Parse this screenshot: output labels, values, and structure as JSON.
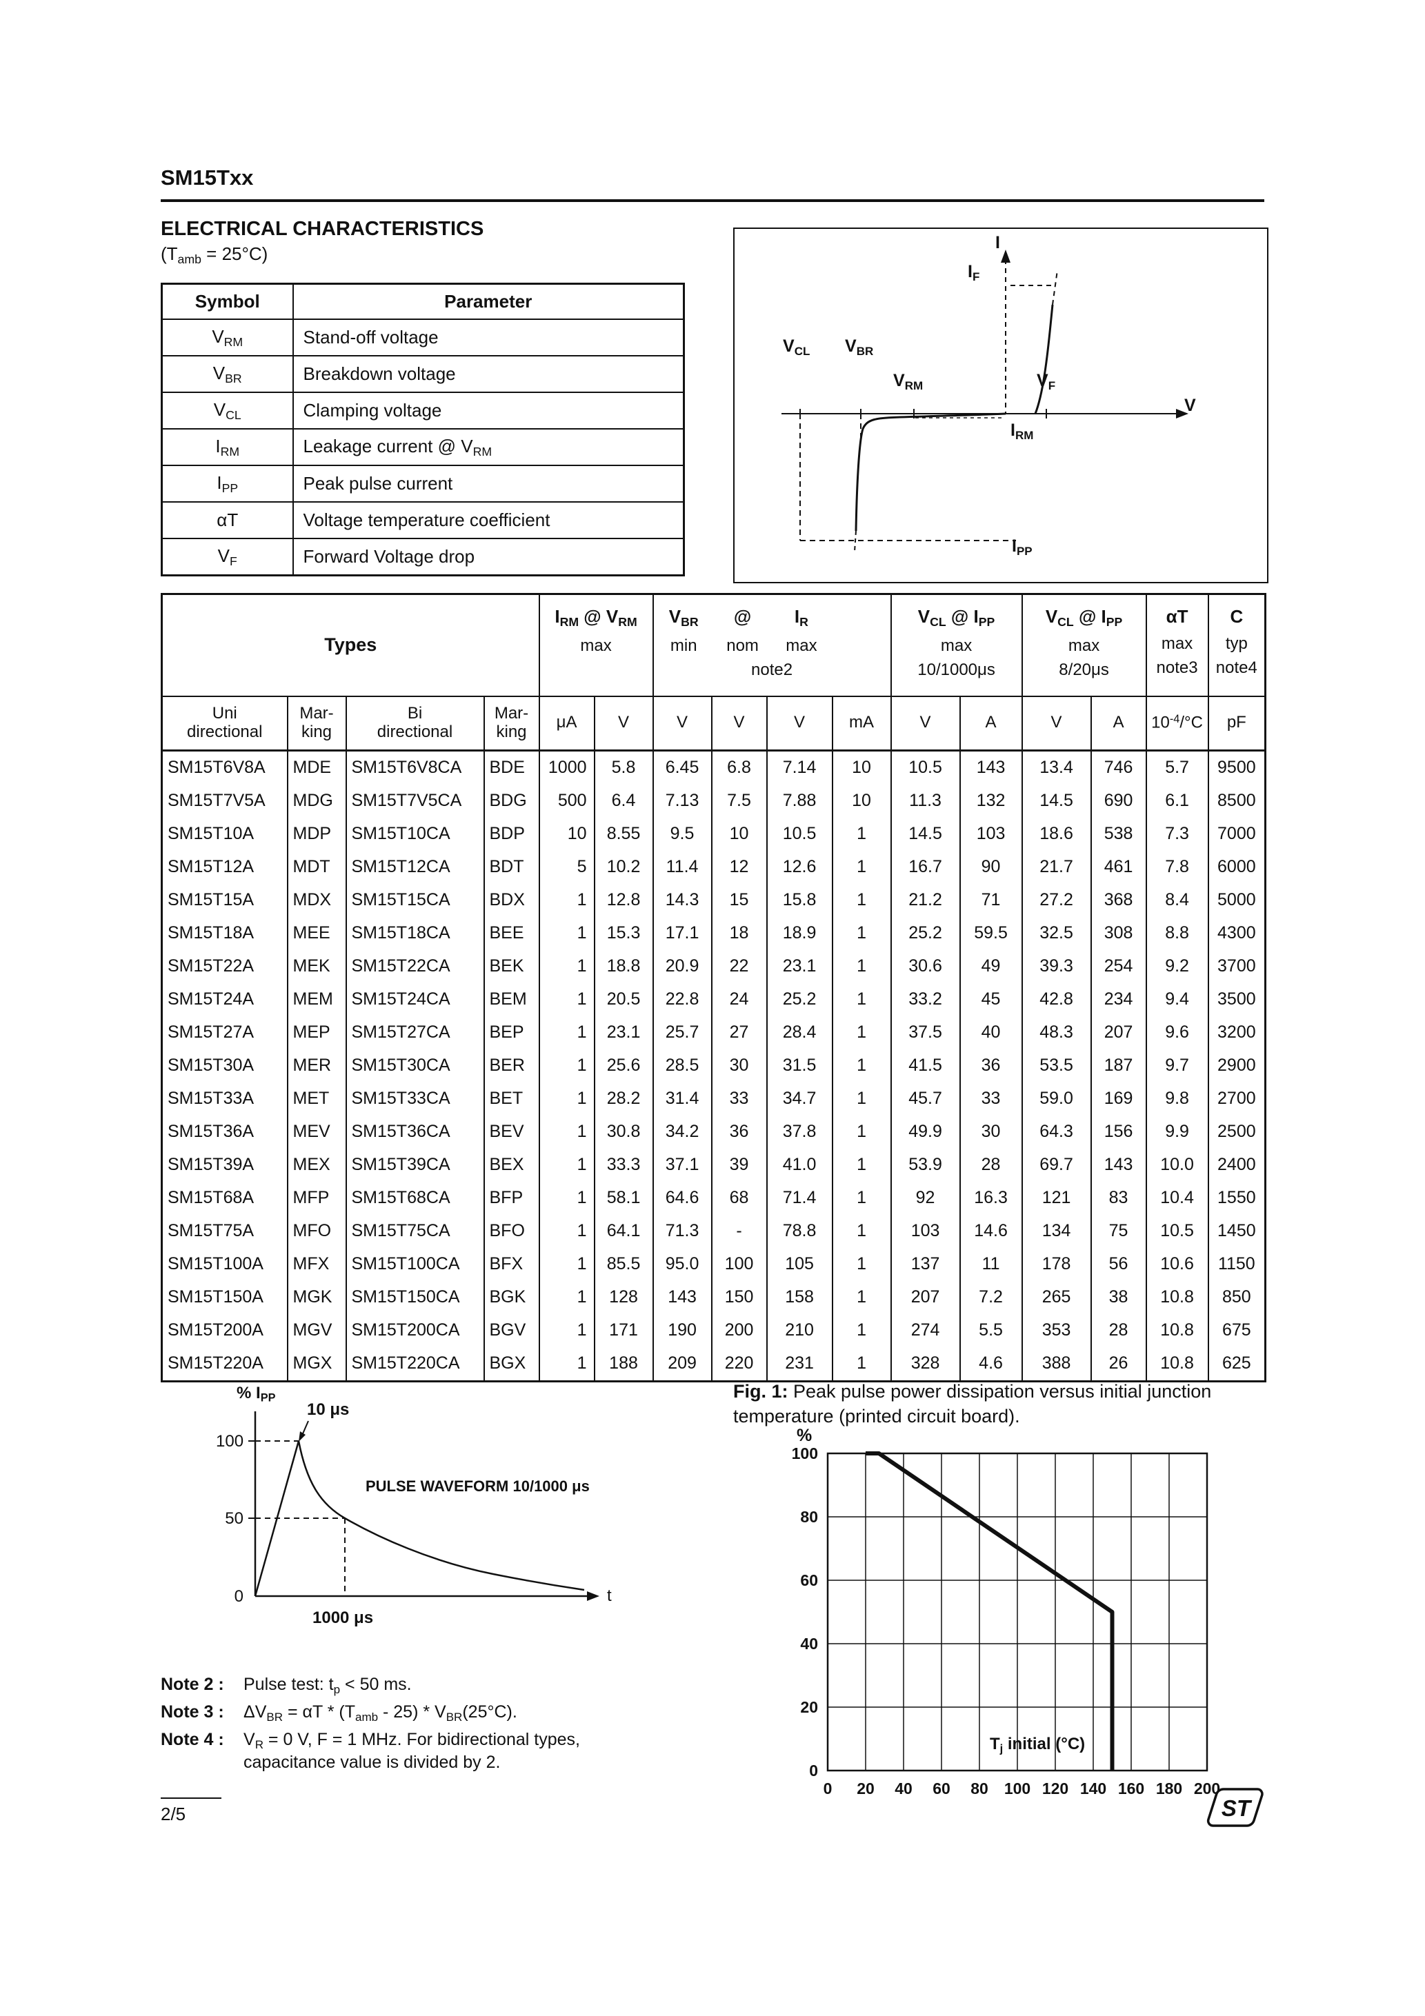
{
  "page": {
    "part_number": "SM15Txx",
    "page_number": "2/5",
    "logo_text": "ST"
  },
  "electrical": {
    "title": "ELECTRICAL CHARACTERISTICS",
    "subtitle": "(T_{amb} = 25°C)",
    "symbol_table": {
      "headers": [
        "Symbol",
        "Parameter"
      ],
      "rows": [
        {
          "symbol": "V_{RM}",
          "parameter": "Stand-off voltage"
        },
        {
          "symbol": "V_{BR}",
          "parameter": "Breakdown voltage"
        },
        {
          "symbol": "V_{CL}",
          "parameter": "Clamping voltage"
        },
        {
          "symbol": "I_{RM}",
          "parameter": "Leakage current @ V_{RM}"
        },
        {
          "symbol": "I_{PP}",
          "parameter": "Peak pulse current"
        },
        {
          "symbol": "αT",
          "parameter": "Voltage temperature coefficient"
        },
        {
          "symbol": "V_{F}",
          "parameter": "Forward Voltage drop"
        }
      ]
    }
  },
  "iv_diagram": {
    "labels": {
      "i": "I",
      "i_f": "I_{F}",
      "v_cl": "V_{CL}",
      "v_br": "V_{BR}",
      "v_rm": "V_{RM}",
      "v_f": "V_{F}",
      "v": "V",
      "i_rm": "I_{RM}",
      "i_pp": "I_{PP}"
    }
  },
  "main_table": {
    "header": {
      "types": "Types",
      "irm": {
        "title": "I_{RM} @ V_{RM}",
        "l2": "max"
      },
      "vbr": {
        "p1": "V_{BR}",
        "p2": "@",
        "p3": "I_{R}",
        "m1": "min",
        "m2": "nom",
        "m3": "max",
        "l3": "note2"
      },
      "vcl10": {
        "title": "V_{CL} @ I_{PP}",
        "l2": "max",
        "l3": "10/1000μs"
      },
      "vcl8": {
        "title": "V_{CL} @ I_{PP}",
        "l2": "max",
        "l3": "8/20μs"
      },
      "alphat": {
        "title": "αT",
        "l2": "max",
        "l3": "note3"
      },
      "cap": {
        "title": "C",
        "l2": "typ",
        "l3": "note4"
      }
    },
    "units": [
      "Uni\ndirectional",
      "Mar-\nking",
      "Bi\ndirectional",
      "Mar-\nking",
      "μA",
      "V",
      "V",
      "V",
      "V",
      "mA",
      "V",
      "A",
      "V",
      "A",
      "10^{-4}/°C",
      "pF"
    ],
    "rows": [
      [
        "SM15T6V8A",
        "MDE",
        "SM15T6V8CA",
        "BDE",
        "1000",
        "5.8",
        "6.45",
        "6.8",
        "7.14",
        "10",
        "10.5",
        "143",
        "13.4",
        "746",
        "5.7",
        "9500"
      ],
      [
        "SM15T7V5A",
        "MDG",
        "SM15T7V5CA",
        "BDG",
        "500",
        "6.4",
        "7.13",
        "7.5",
        "7.88",
        "10",
        "11.3",
        "132",
        "14.5",
        "690",
        "6.1",
        "8500"
      ],
      [
        "SM15T10A",
        "MDP",
        "SM15T10CA",
        "BDP",
        "10",
        "8.55",
        "9.5",
        "10",
        "10.5",
        "1",
        "14.5",
        "103",
        "18.6",
        "538",
        "7.3",
        "7000"
      ],
      [
        "SM15T12A",
        "MDT",
        "SM15T12CA",
        "BDT",
        "5",
        "10.2",
        "11.4",
        "12",
        "12.6",
        "1",
        "16.7",
        "90",
        "21.7",
        "461",
        "7.8",
        "6000"
      ],
      [
        "SM15T15A",
        "MDX",
        "SM15T15CA",
        "BDX",
        "1",
        "12.8",
        "14.3",
        "15",
        "15.8",
        "1",
        "21.2",
        "71",
        "27.2",
        "368",
        "8.4",
        "5000"
      ],
      [
        "SM15T18A",
        "MEE",
        "SM15T18CA",
        "BEE",
        "1",
        "15.3",
        "17.1",
        "18",
        "18.9",
        "1",
        "25.2",
        "59.5",
        "32.5",
        "308",
        "8.8",
        "4300"
      ],
      [
        "SM15T22A",
        "MEK",
        "SM15T22CA",
        "BEK",
        "1",
        "18.8",
        "20.9",
        "22",
        "23.1",
        "1",
        "30.6",
        "49",
        "39.3",
        "254",
        "9.2",
        "3700"
      ],
      [
        "SM15T24A",
        "MEM",
        "SM15T24CA",
        "BEM",
        "1",
        "20.5",
        "22.8",
        "24",
        "25.2",
        "1",
        "33.2",
        "45",
        "42.8",
        "234",
        "9.4",
        "3500"
      ],
      [
        "SM15T27A",
        "MEP",
        "SM15T27CA",
        "BEP",
        "1",
        "23.1",
        "25.7",
        "27",
        "28.4",
        "1",
        "37.5",
        "40",
        "48.3",
        "207",
        "9.6",
        "3200"
      ],
      [
        "SM15T30A",
        "MER",
        "SM15T30CA",
        "BER",
        "1",
        "25.6",
        "28.5",
        "30",
        "31.5",
        "1",
        "41.5",
        "36",
        "53.5",
        "187",
        "9.7",
        "2900"
      ],
      [
        "SM15T33A",
        "MET",
        "SM15T33CA",
        "BET",
        "1",
        "28.2",
        "31.4",
        "33",
        "34.7",
        "1",
        "45.7",
        "33",
        "59.0",
        "169",
        "9.8",
        "2700"
      ],
      [
        "SM15T36A",
        "MEV",
        "SM15T36CA",
        "BEV",
        "1",
        "30.8",
        "34.2",
        "36",
        "37.8",
        "1",
        "49.9",
        "30",
        "64.3",
        "156",
        "9.9",
        "2500"
      ],
      [
        "SM15T39A",
        "MEX",
        "SM15T39CA",
        "BEX",
        "1",
        "33.3",
        "37.1",
        "39",
        "41.0",
        "1",
        "53.9",
        "28",
        "69.7",
        "143",
        "10.0",
        "2400"
      ],
      [
        "SM15T68A",
        "MFP",
        "SM15T68CA",
        "BFP",
        "1",
        "58.1",
        "64.6",
        "68",
        "71.4",
        "1",
        "92",
        "16.3",
        "121",
        "83",
        "10.4",
        "1550"
      ],
      [
        "SM15T75A",
        "MFO",
        "SM15T75CA",
        "BFO",
        "1",
        "64.1",
        "71.3",
        "-",
        "78.8",
        "1",
        "103",
        "14.6",
        "134",
        "75",
        "10.5",
        "1450"
      ],
      [
        "SM15T100A",
        "MFX",
        "SM15T100CA",
        "BFX",
        "1",
        "85.5",
        "95.0",
        "100",
        "105",
        "1",
        "137",
        "11",
        "178",
        "56",
        "10.6",
        "1150"
      ],
      [
        "SM15T150A",
        "MGK",
        "SM15T150CA",
        "BGK",
        "1",
        "128",
        "143",
        "150",
        "158",
        "1",
        "207",
        "7.2",
        "265",
        "38",
        "10.8",
        "850"
      ],
      [
        "SM15T200A",
        "MGV",
        "SM15T200CA",
        "BGV",
        "1",
        "171",
        "190",
        "200",
        "210",
        "1",
        "274",
        "5.5",
        "353",
        "28",
        "10.8",
        "675"
      ],
      [
        "SM15T220A",
        "MGX",
        "SM15T220CA",
        "BGX",
        "1",
        "188",
        "209",
        "220",
        "231",
        "1",
        "328",
        "4.6",
        "388",
        "26",
        "10.8",
        "625"
      ]
    ]
  },
  "pulse_chart": {
    "y_axis_label": "% I_{PP}",
    "x_axis_label": "t",
    "y_ticks": [
      "100",
      "50",
      "0"
    ],
    "rise_label": "10 μs",
    "decay_label": "1000 μs",
    "title": "PULSE WAVEFORM 10/1000 μs"
  },
  "fig1_caption": {
    "label": "Fig. 1:",
    "text": " Peak pulse power dissipation versus initial junction temperature (printed circuit board)."
  },
  "fig1_chart": {
    "type": "line",
    "y_axis_label": "%",
    "x_axis_label": "T_{j} initial (°C)",
    "xlim": [
      0,
      200
    ],
    "ylim": [
      0,
      100
    ],
    "x_ticks": [
      0,
      20,
      40,
      60,
      80,
      100,
      120,
      140,
      160,
      180,
      200
    ],
    "y_ticks": [
      0,
      20,
      40,
      60,
      80,
      100
    ],
    "curve_points": [
      [
        20,
        100
      ],
      [
        27,
        100
      ],
      [
        150,
        50
      ],
      [
        150,
        0
      ]
    ]
  },
  "notes": [
    {
      "label": "Note 2 :",
      "text": "Pulse test: t_{p} < 50 ms."
    },
    {
      "label": "Note 3 :",
      "text": "ΔV_{BR} = αT * (T_{amb} - 25) * V_{BR}(25°C)."
    },
    {
      "label": "Note 4 :",
      "text": "V_{R} = 0 V,  F = 1 MHz. For bidirectional types,\ncapacitance value is divided by 2."
    }
  ]
}
